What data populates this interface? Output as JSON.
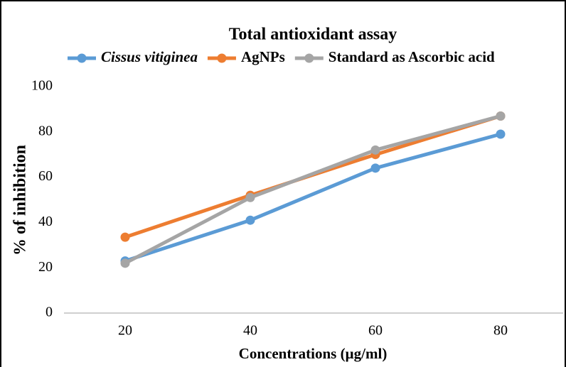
{
  "chart_data": {
    "type": "line",
    "title": "Total antioxidant assay",
    "xlabel": "Concentrations (µg/ml)",
    "ylabel": "% of inhibition",
    "categories": [
      "20",
      "40",
      "60",
      "80"
    ],
    "series": [
      {
        "name": "Cissus vitiginea",
        "color": "#5b9bd5",
        "values": [
          23,
          41,
          64,
          79
        ]
      },
      {
        "name": "AgNPs",
        "color": "#ed7d31",
        "values": [
          33.5,
          52,
          70,
          87
        ]
      },
      {
        "name": "Standard as Ascorbic acid",
        "color": "#a5a5a5",
        "values": [
          22,
          51,
          72,
          87
        ]
      }
    ],
    "ylim": [
      0,
      100
    ],
    "yticks": [
      0,
      20,
      40,
      60,
      80,
      100
    ],
    "grid": false,
    "legend": "top"
  }
}
